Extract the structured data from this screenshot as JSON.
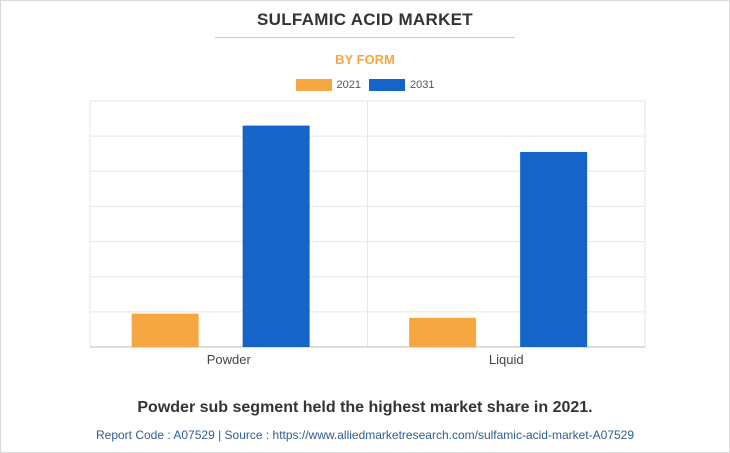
{
  "header": {
    "title": "SULFAMIC ACID MARKET",
    "subtitle": "BY FORM"
  },
  "colors": {
    "series_2021": "#f5a742",
    "series_2031": "#1565c8",
    "subtitle": "#f5a742",
    "grid": "#e6e6e6"
  },
  "chart_data": {
    "type": "bar",
    "title": "SULFAMIC ACID MARKET",
    "subtitle": "BY FORM",
    "categories": [
      "Powder",
      "Liquid"
    ],
    "series": [
      {
        "name": "2021",
        "values": [
          9.5,
          8.3
        ]
      },
      {
        "name": "2031",
        "values": [
          63.0,
          55.5
        ]
      }
    ],
    "ylim": [
      0,
      70
    ],
    "grid": true,
    "legend_position": "top-center",
    "xlabel": "",
    "ylabel": ""
  },
  "footer": {
    "headline": "Powder sub segment held the highest market share in 2021.",
    "source": "Report Code : A07529  |  Source : https://www.alliedmarketresearch.com/sulfamic-acid-market-A07529"
  }
}
